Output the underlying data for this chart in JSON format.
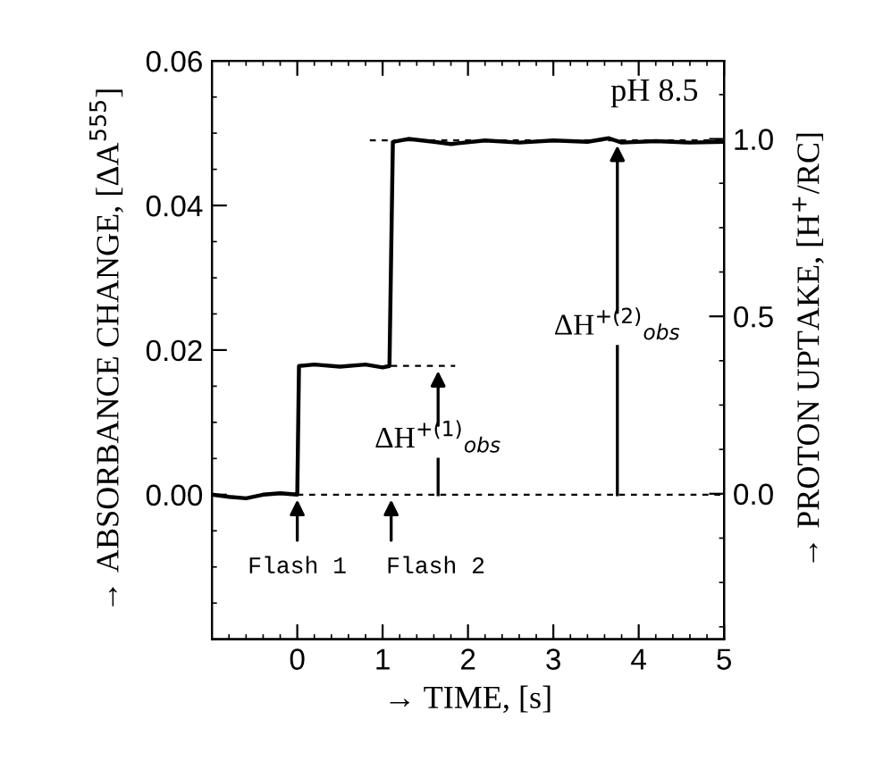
{
  "chart_data": {
    "type": "line",
    "xlabel": "→ TIME, [s]",
    "ylabel": "→ ABSORBANCE CHANGE, [ΔA$^{555}$]",
    "y2label": "→ PROTON UPTAKE, [H$^{+}$/RC]",
    "xlim": [
      -1,
      5
    ],
    "xticks": [
      0,
      1,
      2,
      3,
      4,
      5
    ],
    "ylim": [
      -0.02,
      0.06
    ],
    "yticks": [
      {
        "value": 0,
        "label": "0.00"
      },
      0.02,
      0.04,
      0.06
    ],
    "y2lim": [
      -0.41,
      1.22
    ],
    "y2ticks": [
      {
        "value": 0,
        "label": "0.0"
      },
      0.5,
      {
        "value": 1,
        "label": "1.0"
      }
    ],
    "series": [
      {
        "color": "#000000",
        "line_style": "solid",
        "x": [
          -1,
          -0.8,
          -0.6,
          -0.4,
          -0.2,
          0,
          0.02,
          0.2,
          0.5,
          0.8,
          1.0,
          1.08,
          1.12,
          1.3,
          1.6,
          1.8,
          2.2,
          2.6,
          3.0,
          3.4,
          3.65,
          3.8,
          4.2,
          4.6,
          5
        ],
        "values": [
          0,
          -0.0003,
          -0.0005,
          0,
          0.0002,
          0,
          0.0178,
          0.018,
          0.0177,
          0.018,
          0.0176,
          0.0178,
          0.0488,
          0.0492,
          0.0488,
          0.0485,
          0.049,
          0.0487,
          0.049,
          0.0488,
          0.0493,
          0.0487,
          0.0489,
          0.0487,
          0.0488
        ]
      },
      {
        "color": "#000000",
        "line_style": "dashed",
        "x": [
          0,
          5
        ],
        "values": [
          0,
          0
        ]
      },
      {
        "color": "#000000",
        "line_style": "dashed",
        "x": [
          1.1,
          1.85
        ],
        "values": [
          0.0178,
          0.0178
        ]
      },
      {
        "color": "#000000",
        "line_style": "dashed",
        "x": [
          0.85,
          5
        ],
        "values": [
          0.049,
          0.049
        ]
      }
    ],
    "annotations": [
      {
        "text": "Flash 1",
        "x": 0,
        "y": 0
      },
      {
        "text": "Flash 2",
        "x": 1.1,
        "y": 0
      },
      {
        "text": "ΔH$^{+(1)}$$_{obs}$",
        "x": 1.65,
        "y": 0.0178
      },
      {
        "text": "ΔH$^{+(2)}$$_{obs}$",
        "x": 3.75,
        "y": 0.049
      },
      "pH 8.5"
    ],
    "grid": false,
    "legend": false,
    "marker": "none"
  }
}
